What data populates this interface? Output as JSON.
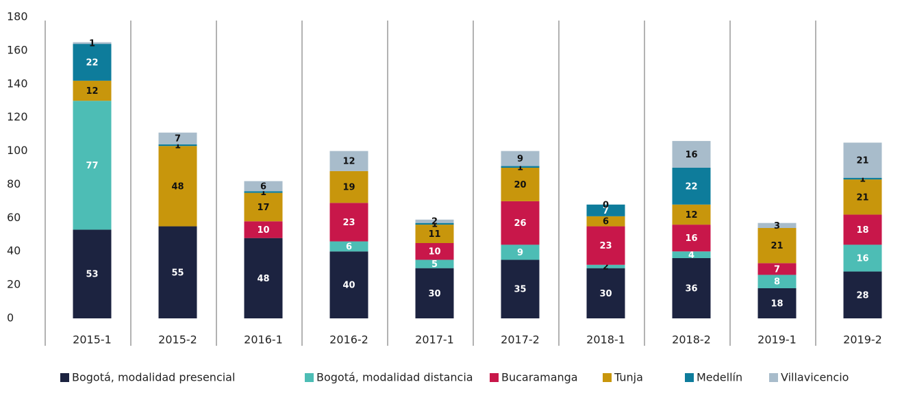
{
  "chart_data": {
    "type": "stacked_bar",
    "categories": [
      "2015-1",
      "2015-2",
      "2016-1",
      "2016-2",
      "2017-1",
      "2017-2",
      "2018-1",
      "2018-2",
      "2019-1",
      "2019-2"
    ],
    "series": [
      {
        "name": "Bogotá, modalidad presencial",
        "color": "#1c2340",
        "values": [
          53,
          55,
          48,
          40,
          30,
          35,
          30,
          36,
          18,
          28
        ]
      },
      {
        "name": "Bogotá, modalidad distancia",
        "color": "#4dbdb5",
        "values": [
          77,
          null,
          null,
          6,
          5,
          9,
          2,
          4,
          8,
          16
        ]
      },
      {
        "name": "Bucaramanga",
        "color": "#c8174a",
        "values": [
          null,
          null,
          10,
          23,
          10,
          26,
          23,
          16,
          7,
          18
        ]
      },
      {
        "name": "Tunja",
        "color": "#c8960c",
        "values": [
          12,
          48,
          17,
          19,
          11,
          20,
          6,
          12,
          21,
          21
        ]
      },
      {
        "name": "Medellín",
        "color": "#0e7c9b",
        "values": [
          22,
          1,
          1,
          null,
          1,
          1,
          7,
          22,
          null,
          1
        ]
      },
      {
        "name": "Villavicencio",
        "color": "#a8bccb",
        "values": [
          1,
          7,
          6,
          12,
          2,
          9,
          0,
          16,
          3,
          21
        ]
      }
    ],
    "ylim": [
      0,
      180
    ],
    "yticks": [
      0,
      20,
      40,
      60,
      80,
      100,
      120,
      140,
      160,
      180
    ],
    "grid": false,
    "legend": "bottom"
  }
}
